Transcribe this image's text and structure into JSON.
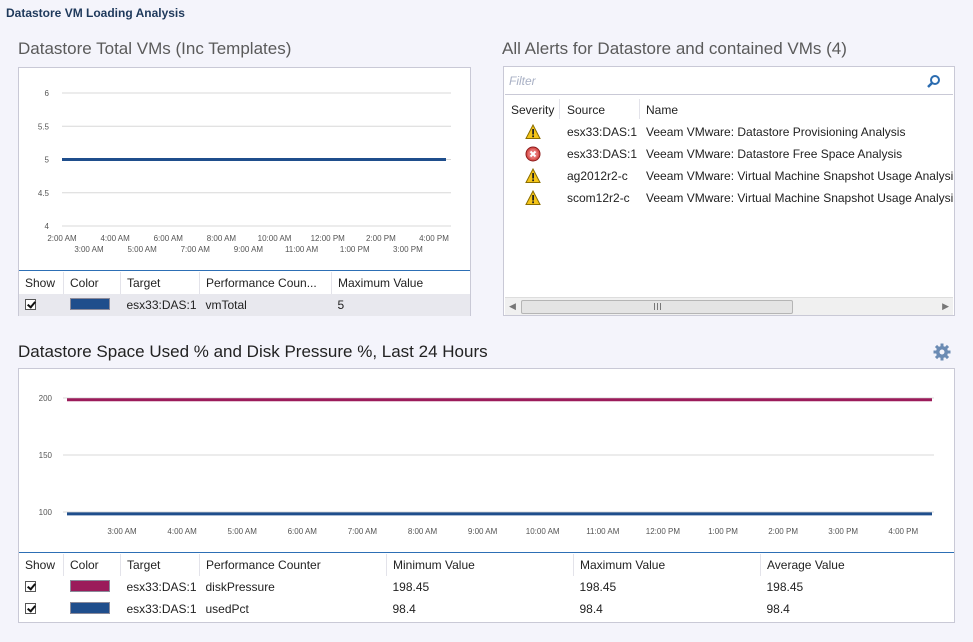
{
  "window": {
    "title": "Datastore VM Loading Analysis"
  },
  "vm_chart": {
    "section_title": "Datastore Total VMs (Inc Templates)",
    "chart_data": {
      "type": "line",
      "ylim": [
        4,
        6
      ],
      "y_ticks": [
        "6",
        "5.5",
        "5",
        "4.5",
        "4"
      ],
      "x_ticks_top": [
        "2:00 AM",
        "4:00 AM",
        "6:00 AM",
        "8:00 AM",
        "10:00 AM",
        "12:00 PM",
        "2:00 PM",
        "4:00 PM"
      ],
      "x_ticks_bottom": [
        "3:00 AM",
        "5:00 AM",
        "7:00 AM",
        "9:00 AM",
        "11:00 AM",
        "1:00 PM",
        "3:00 PM"
      ],
      "series": [
        {
          "name": "vmTotal",
          "color": "#1f4e8c",
          "values": [
            5,
            5
          ]
        }
      ]
    },
    "legend": {
      "headers": [
        "Show",
        "Color",
        "Target",
        "Performance Coun...",
        "Maximum Value"
      ],
      "rows": [
        {
          "target": "esx33:DAS:1",
          "counter": "vmTotal",
          "max": "5",
          "color": "#1f4e8c"
        }
      ]
    }
  },
  "alerts": {
    "section_title": "All Alerts for Datastore and contained VMs (4)",
    "filter_placeholder": "Filter",
    "headers": [
      "Severity",
      "Source",
      "Name"
    ],
    "rows": [
      {
        "severity": "warning",
        "source": "esx33:DAS:1",
        "name": "Veeam VMware: Datastore Provisioning Analysis"
      },
      {
        "severity": "critical",
        "source": "esx33:DAS:1",
        "name": "Veeam VMware: Datastore Free Space Analysis"
      },
      {
        "severity": "warning",
        "source": "ag2012r2-c",
        "name": "Veeam VMware: Virtual Machine Snapshot Usage Analysis"
      },
      {
        "severity": "warning",
        "source": "scom12r2-c",
        "name": "Veeam VMware: Virtual Machine Snapshot Usage Analysis"
      }
    ]
  },
  "space_chart": {
    "section_title": "Datastore Space Used % and Disk Pressure %, Last 24 Hours",
    "chart_data": {
      "type": "line",
      "ylim": [
        100,
        200
      ],
      "y_ticks": [
        "200",
        "150",
        "100"
      ],
      "x_ticks": [
        "3:00 AM",
        "4:00 AM",
        "5:00 AM",
        "6:00 AM",
        "7:00 AM",
        "8:00 AM",
        "9:00 AM",
        "10:00 AM",
        "11:00 AM",
        "12:00 PM",
        "1:00 PM",
        "2:00 PM",
        "3:00 PM",
        "4:00 PM"
      ],
      "series": [
        {
          "name": "diskPressure",
          "color": "#9b1b5a",
          "values": [
            198.45,
            198.45
          ]
        },
        {
          "name": "usedPct",
          "color": "#1f4e8c",
          "values": [
            98.4,
            98.4
          ]
        }
      ]
    },
    "legend": {
      "headers": [
        "Show",
        "Color",
        "Target",
        "Performance Counter",
        "Minimum Value",
        "Maximum Value",
        "Average Value"
      ],
      "rows": [
        {
          "target": "esx33:DAS:1",
          "counter": "diskPressure",
          "min": "198.45",
          "max": "198.45",
          "avg": "198.45",
          "color": "#9b1b5a"
        },
        {
          "target": "esx33:DAS:1",
          "counter": "usedPct",
          "min": "98.4",
          "max": "98.4",
          "avg": "98.4",
          "color": "#1f4e8c"
        }
      ]
    }
  }
}
